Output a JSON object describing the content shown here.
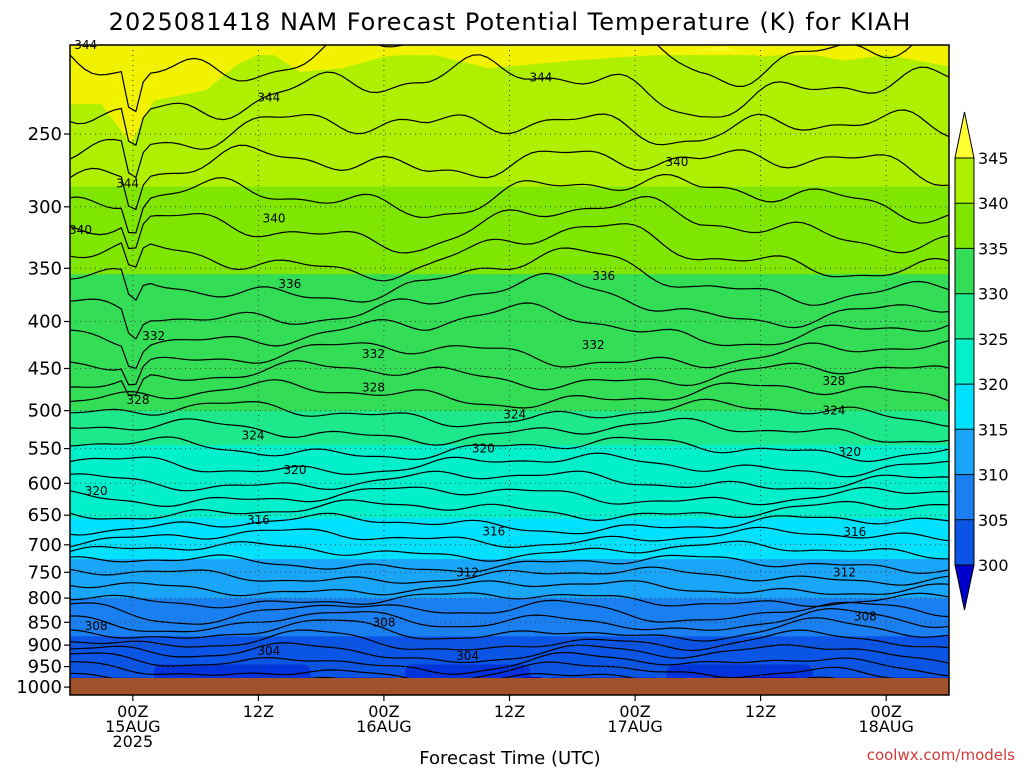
{
  "chart_data": {
    "type": "contour",
    "title": "2025081418 NAM Forecast Potential Temperature (K) for KIAH",
    "xlabel": "Forecast Time (UTC)",
    "ylabel": "",
    "credit": "coolwx.com/models",
    "y_scale": "log-pressure",
    "y_ticks": [
      250,
      300,
      350,
      400,
      450,
      500,
      550,
      600,
      650,
      700,
      750,
      800,
      850,
      900,
      950,
      1000
    ],
    "ylim": [
      200,
      1020
    ],
    "x_ticks": [
      {
        "hour": 6,
        "line1": "00Z",
        "line2": "15AUG",
        "line3": "2025"
      },
      {
        "hour": 18,
        "line1": "12Z",
        "line2": "",
        "line3": ""
      },
      {
        "hour": 30,
        "line1": "00Z",
        "line2": "16AUG",
        "line3": ""
      },
      {
        "hour": 42,
        "line1": "12Z",
        "line2": "",
        "line3": ""
      },
      {
        "hour": 54,
        "line1": "00Z",
        "line2": "17AUG",
        "line3": ""
      },
      {
        "hour": 66,
        "line1": "12Z",
        "line2": "",
        "line3": ""
      },
      {
        "hour": 78,
        "line1": "00Z",
        "line2": "18AUG",
        "line3": ""
      }
    ],
    "xlim": [
      0,
      84
    ],
    "colorbar": {
      "levels": [
        300,
        305,
        310,
        315,
        320,
        325,
        330,
        335,
        340,
        345
      ],
      "colors": [
        "#0033dd",
        "#0a55e6",
        "#1a7ff0",
        "#1aa6f8",
        "#00e1ff",
        "#00f0cc",
        "#1ee88c",
        "#33dd55",
        "#7fe600",
        "#aef000",
        "#f2f200"
      ],
      "under_color": "#0000cc",
      "over_color": "#ffff33"
    },
    "ground_color": "#a0522d",
    "contour_interval": 2,
    "labeled_contours": [
      {
        "value": "344",
        "hour": 1.5,
        "p": 200
      },
      {
        "value": "344",
        "hour": 19,
        "p": 228
      },
      {
        "value": "344",
        "hour": 45,
        "p": 217
      },
      {
        "value": "344",
        "hour": 5.5,
        "p": 283
      },
      {
        "value": "340",
        "hour": 1,
        "p": 318
      },
      {
        "value": "340",
        "hour": 19.5,
        "p": 309
      },
      {
        "value": "340",
        "hour": 58,
        "p": 268
      },
      {
        "value": "336",
        "hour": 21,
        "p": 364
      },
      {
        "value": "336",
        "hour": 51,
        "p": 357
      },
      {
        "value": "332",
        "hour": 8,
        "p": 415
      },
      {
        "value": "332",
        "hour": 29,
        "p": 434
      },
      {
        "value": "332",
        "hour": 50,
        "p": 424
      },
      {
        "value": "328",
        "hour": 6.5,
        "p": 487
      },
      {
        "value": "328",
        "hour": 29,
        "p": 472
      },
      {
        "value": "328",
        "hour": 73,
        "p": 464
      },
      {
        "value": "324",
        "hour": 17.5,
        "p": 532
      },
      {
        "value": "324",
        "hour": 42.5,
        "p": 505
      },
      {
        "value": "324",
        "hour": 73,
        "p": 500
      },
      {
        "value": "320",
        "hour": 2.5,
        "p": 612
      },
      {
        "value": "320",
        "hour": 21.5,
        "p": 580
      },
      {
        "value": "320",
        "hour": 39.5,
        "p": 550
      },
      {
        "value": "320",
        "hour": 74.5,
        "p": 555
      },
      {
        "value": "316",
        "hour": 18,
        "p": 658
      },
      {
        "value": "316",
        "hour": 40.5,
        "p": 677
      },
      {
        "value": "316",
        "hour": 75,
        "p": 678
      },
      {
        "value": "312",
        "hour": 38,
        "p": 750
      },
      {
        "value": "312",
        "hour": 74,
        "p": 750
      },
      {
        "value": "308",
        "hour": 2.5,
        "p": 858
      },
      {
        "value": "308",
        "hour": 30,
        "p": 851
      },
      {
        "value": "308",
        "hour": 76,
        "p": 838
      },
      {
        "value": "304",
        "hour": 19,
        "p": 913
      },
      {
        "value": "304",
        "hour": 38,
        "p": 925
      }
    ]
  }
}
